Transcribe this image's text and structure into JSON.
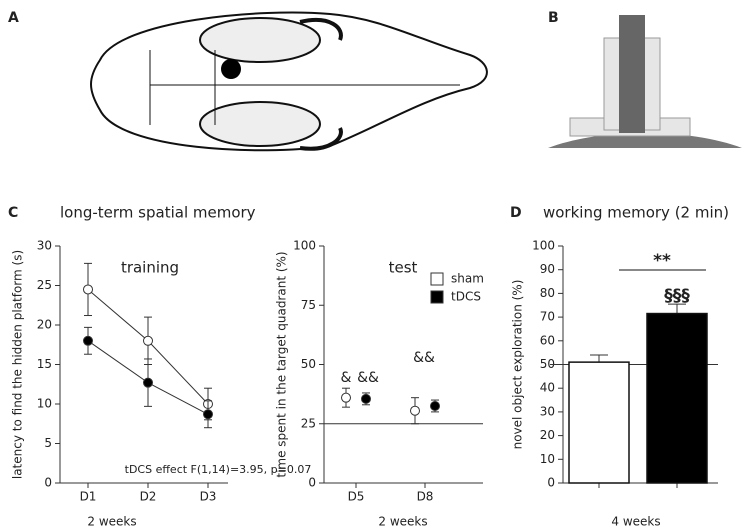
{
  "panel_labels": [
    "A",
    "B",
    "C",
    "D"
  ],
  "chart_data": [
    {
      "type": "line",
      "heading": "long-term spatial memory",
      "title": "training",
      "ylabel": "latency to find the hidden platform (s)",
      "xlabel": "2 weeks",
      "annotation": "tDCS effect F(1,14)=3.95, p=0.07",
      "categories": [
        "D1",
        "D2",
        "D3"
      ],
      "series": [
        {
          "color": "#ffffff",
          "values": [
            24.5,
            18,
            10
          ],
          "errors": [
            3.3,
            3,
            2
          ]
        },
        {
          "color": "#000000",
          "values": [
            18,
            12.7,
            8.7
          ],
          "errors": [
            1.7,
            3,
            1.7
          ]
        }
      ],
      "ylim": [
        0,
        30
      ],
      "yticks": [
        0,
        5,
        10,
        15,
        20,
        25,
        30
      ]
    },
    {
      "type": "dot",
      "title": "test",
      "ylabel": "time spent in the target quadrant (%)",
      "xlabel": "2 weeks",
      "categories": [
        "D5",
        "D8"
      ],
      "series": [
        {
          "name": "sham",
          "color": "#ffffff",
          "values": [
            36,
            30.5
          ],
          "errors": [
            4,
            5.5
          ]
        },
        {
          "name": "tDCS",
          "color": "#000000",
          "values": [
            35.5,
            32.5
          ],
          "errors": [
            2.5,
            2.5
          ]
        }
      ],
      "legend": "upper right",
      "reference_line": 25,
      "annotations": [
        "&",
        "&&",
        "&&"
      ],
      "ylim": [
        0,
        100
      ],
      "yticks": [
        0,
        25,
        50,
        75,
        100
      ]
    },
    {
      "type": "bar",
      "heading": "working memory (2 min)",
      "ylabel": "novel object exploration (%)",
      "xlabel": "4 weeks",
      "categories": [
        null,
        null
      ],
      "values": [
        51,
        71.5
      ],
      "errors": [
        3,
        4
      ],
      "colors": [
        "#ffffff",
        "#000000"
      ],
      "reference_line": 50,
      "annotations": [
        "**",
        "§§§"
      ],
      "ylim": [
        0,
        100
      ],
      "yticks": [
        0,
        10,
        20,
        30,
        40,
        50,
        60,
        70,
        80,
        90,
        100
      ]
    }
  ]
}
